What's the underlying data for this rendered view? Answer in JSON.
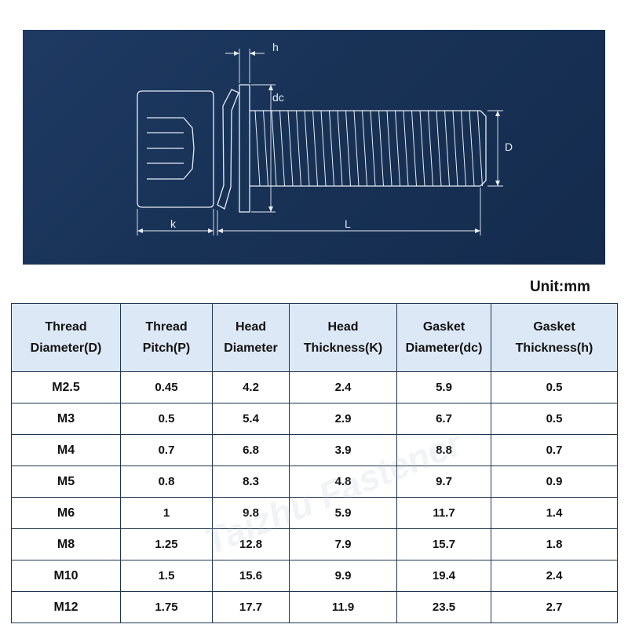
{
  "diagram": {
    "labels": {
      "h": "h",
      "dc": "dc",
      "D": "D",
      "k": "k",
      "L": "L"
    }
  },
  "unit": "Unit:mm",
  "table": {
    "headers": [
      [
        "Thread",
        "Diameter(D)"
      ],
      [
        "Thread",
        "Pitch(P)"
      ],
      [
        "Head",
        "Diameter"
      ],
      [
        "Head",
        "Thickness(K)"
      ],
      [
        "Gasket",
        "Diameter(dc)"
      ],
      [
        "Gasket",
        "Thickness(h)"
      ]
    ],
    "rows": [
      [
        "M2.5",
        "0.45",
        "4.2",
        "2.4",
        "5.9",
        "0.5"
      ],
      [
        "M3",
        "0.5",
        "5.4",
        "2.9",
        "6.7",
        "0.5"
      ],
      [
        "M4",
        "0.7",
        "6.8",
        "3.9",
        "8.8",
        "0.7"
      ],
      [
        "M5",
        "0.8",
        "8.3",
        "4.8",
        "9.7",
        "0.9"
      ],
      [
        "M6",
        "1",
        "9.8",
        "5.9",
        "11.7",
        "1.4"
      ],
      [
        "M8",
        "1.25",
        "12.8",
        "7.9",
        "15.7",
        "1.8"
      ],
      [
        "M10",
        "1.5",
        "15.6",
        "9.9",
        "19.4",
        "2.4"
      ],
      [
        "M12",
        "1.75",
        "17.7",
        "11.9",
        "23.5",
        "2.7"
      ]
    ]
  },
  "watermark": "Taizhu Fastener",
  "colors": {
    "panel": "#1a345a",
    "header_bg": "#dde8f6",
    "line": "#e8edf5"
  }
}
